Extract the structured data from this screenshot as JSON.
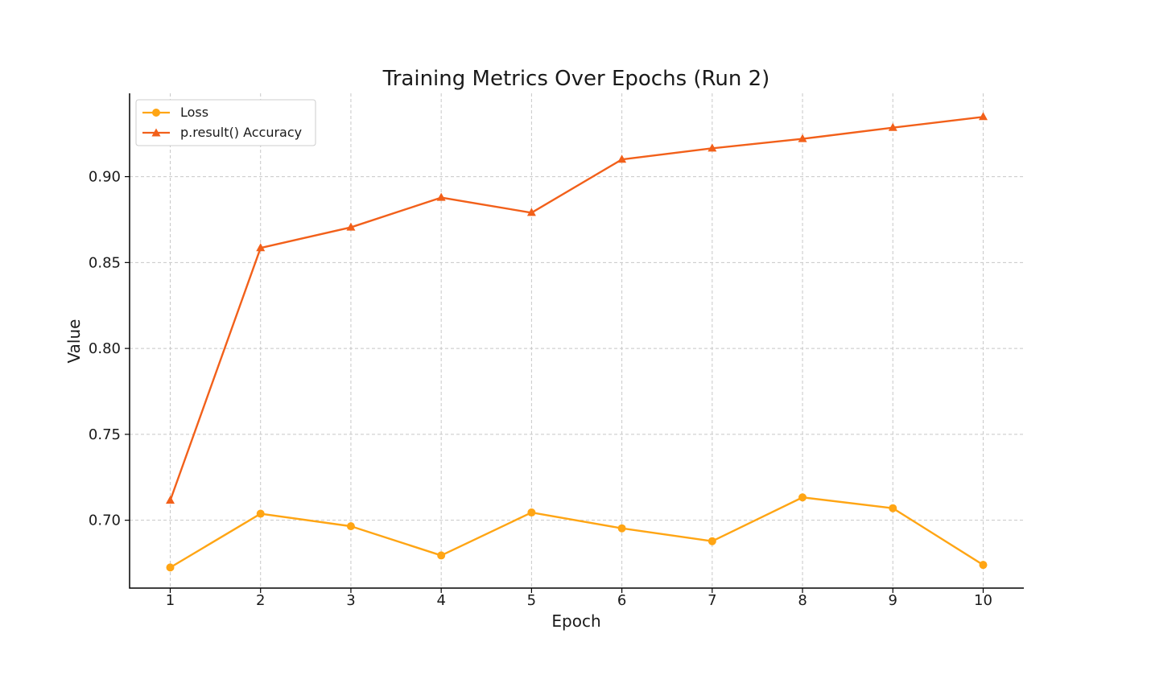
{
  "chart_data": {
    "type": "line",
    "title": "Training Metrics Over Epochs (Run 2)",
    "xlabel": "Epoch",
    "ylabel": "Value",
    "x": [
      1,
      2,
      3,
      4,
      5,
      6,
      7,
      8,
      9,
      10
    ],
    "xticks": [
      "1",
      "2",
      "3",
      "4",
      "5",
      "6",
      "7",
      "8",
      "9",
      "10"
    ],
    "yticks": [
      "0.70",
      "0.75",
      "0.80",
      "0.85",
      "0.90"
    ],
    "ytick_values": [
      0.7,
      0.75,
      0.8,
      0.85,
      0.9
    ],
    "xlim": [
      0.55,
      10.45
    ],
    "ylim": [
      0.6605,
      0.9485
    ],
    "grid": true,
    "legend_position": "top-left",
    "series": [
      {
        "name": "Loss",
        "marker": "circle",
        "color": "#FFA514",
        "values": [
          0.6725,
          0.7038,
          0.6965,
          0.6795,
          0.7045,
          0.6953,
          0.6878,
          0.7133,
          0.707,
          0.674
        ]
      },
      {
        "name": "p.result() Accuracy",
        "marker": "triangle",
        "color": "#F2601A",
        "values": [
          0.7115,
          0.8585,
          0.8705,
          0.8878,
          0.879,
          0.91,
          0.9165,
          0.922,
          0.9285,
          0.9348
        ]
      }
    ]
  }
}
